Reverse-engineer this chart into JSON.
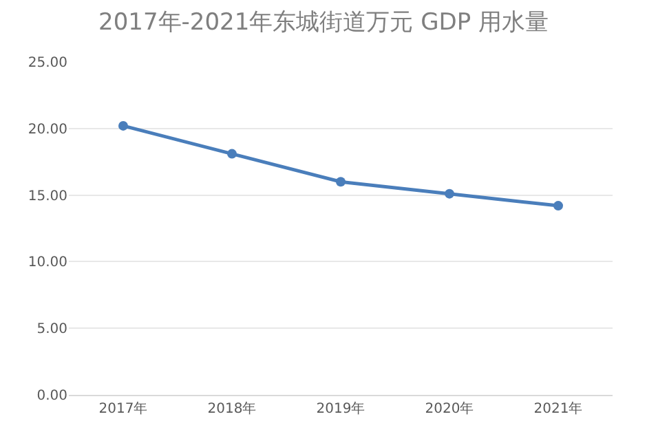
{
  "chart_data": {
    "type": "line",
    "title": "2017年-2021年东城街道万元 GDP 用水量",
    "categories": [
      "2017年",
      "2018年",
      "2019年",
      "2020年",
      "2021年"
    ],
    "series": [
      {
        "color": "#4a7ebb",
        "values": [
          20.2,
          18.1,
          16.0,
          15.1,
          14.2
        ]
      }
    ],
    "ylim": [
      0,
      25
    ],
    "yticks": [
      {
        "value": 0,
        "label": "0.00"
      },
      {
        "value": 5,
        "label": "5.00"
      },
      {
        "value": 10,
        "label": "10.00"
      },
      {
        "value": 15,
        "label": "15.00"
      },
      {
        "value": 20,
        "label": "20.00"
      },
      {
        "value": 25,
        "label": "25.00"
      }
    ],
    "grid": "y",
    "legend": false,
    "marker": "circle",
    "line_style": "solid"
  }
}
